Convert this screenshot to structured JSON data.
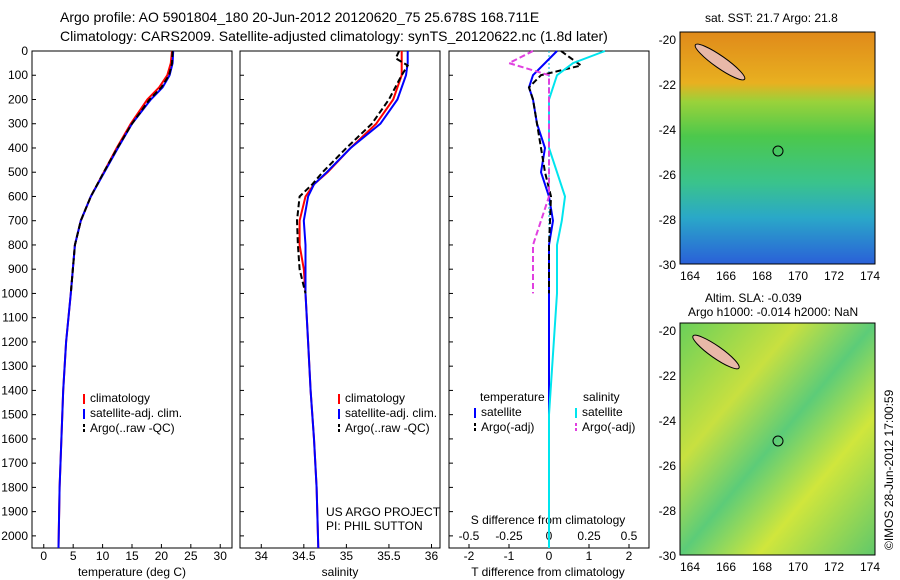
{
  "header": {
    "line1": "Argo profile: AO 5901804_180 20-Jun-2012 20120620_75 25.678S 168.711E",
    "line2": "Climatology: CARS2009. Satellite-adjusted climatology: synTS_20120622.nc (1.8d later)"
  },
  "colors": {
    "climatology": "#ff0000",
    "satellite": "#0000ff",
    "argo": "#000000",
    "sal_satellite": "#00e5ee",
    "sal_argo": "#e040e0"
  },
  "depth_ticks": [
    "0",
    "100",
    "200",
    "300",
    "400",
    "500",
    "600",
    "700",
    "800",
    "900",
    "1000",
    "1100",
    "1200",
    "1300",
    "1400",
    "1500",
    "1600",
    "1700",
    "1800",
    "1900",
    "2000"
  ],
  "panels": {
    "temperature": {
      "xlabel": "temperature (deg C)",
      "xticks": [
        "0",
        "5",
        "10",
        "15",
        "20",
        "25",
        "30"
      ],
      "legend": [
        "climatology",
        "satellite-adj. clim.",
        "Argo(..raw -QC)"
      ]
    },
    "salinity": {
      "xlabel": "salinity",
      "xticks": [
        "34",
        "34.5",
        "35",
        "35.5",
        "36"
      ],
      "legend": [
        "climatology",
        "satellite-adj. clim.",
        "Argo(..raw -QC)"
      ],
      "note1": "US ARGO PROJECT",
      "note2": "PI: PHIL SUTTON"
    },
    "difference": {
      "xlabel": "T difference from climatology",
      "xticks": [
        "-2",
        "-1",
        "0",
        "1",
        "2"
      ],
      "top_label": "S difference from climatology",
      "top_ticks": [
        "-0.5",
        "-0.25",
        "0",
        "0.25",
        "0.5"
      ],
      "legend_t_title": "temperature",
      "legend_s_title": "salinity",
      "legend_t": [
        "satellite",
        "Argo(-adj)"
      ],
      "legend_s": [
        "satellite",
        "Argo(-adj)"
      ]
    }
  },
  "maps": {
    "sst_title": "sat. SST: 21.7 Argo: 21.8",
    "sla_title1": "Altim. SLA: -0.039",
    "sla_title2": "Argo h1000: -0.014 h2000: NaN",
    "lon_ticks": [
      "164",
      "166",
      "168",
      "170",
      "172",
      "174"
    ],
    "lat_ticks": [
      "-20",
      "-22",
      "-24",
      "-26",
      "-28",
      "-30"
    ],
    "side_label": "©IMOS 28-Jun-2012 17:00:59"
  },
  "chart_data": [
    {
      "type": "line",
      "title": "temperature",
      "xlabel": "temperature (deg C)",
      "ylabel": "",
      "xlim": [
        -2,
        32
      ],
      "ylim": [
        2050,
        0
      ],
      "series": [
        {
          "name": "climatology",
          "depth": [
            0,
            50,
            100,
            150,
            200,
            300,
            400,
            500,
            600,
            700,
            800,
            1000,
            1200,
            1400,
            1600,
            1800,
            2050
          ],
          "values": [
            21.8,
            21.6,
            21.0,
            19.6,
            17.6,
            14.8,
            12.4,
            10.2,
            8.0,
            6.3,
            5.3,
            4.6,
            3.8,
            3.3,
            3.0,
            2.7,
            2.5
          ]
        },
        {
          "name": "satellite-adj. clim.",
          "depth": [
            0,
            50,
            100,
            150,
            200,
            300,
            400,
            500,
            600,
            700,
            800,
            1000,
            1200,
            1400,
            1600,
            1800,
            2050
          ],
          "values": [
            22.0,
            21.9,
            21.4,
            20.2,
            18.2,
            15.0,
            12.6,
            10.3,
            8.0,
            6.3,
            5.3,
            4.6,
            3.8,
            3.3,
            3.0,
            2.7,
            2.5
          ]
        },
        {
          "name": "Argo(..raw -QC)",
          "depth": [
            0,
            50,
            100,
            150,
            200,
            300,
            400,
            500,
            600,
            700,
            800,
            1000
          ],
          "values": [
            21.9,
            21.8,
            21.3,
            20.0,
            18.0,
            15.0,
            12.5,
            10.2,
            8.0,
            6.3,
            5.3,
            4.6
          ]
        }
      ]
    },
    {
      "type": "line",
      "title": "salinity",
      "xlabel": "salinity",
      "xlim": [
        33.75,
        36.1
      ],
      "ylim": [
        2050,
        0
      ],
      "series": [
        {
          "name": "climatology",
          "depth": [
            0,
            50,
            100,
            200,
            300,
            400,
            500,
            550,
            600,
            700,
            800,
            900,
            1000,
            1200,
            1400,
            1600,
            1800,
            2050
          ],
          "values": [
            35.65,
            35.65,
            35.65,
            35.55,
            35.35,
            35.05,
            34.78,
            34.62,
            34.52,
            34.45,
            34.45,
            34.5,
            34.52,
            34.55,
            34.58,
            34.62,
            34.65,
            34.67
          ]
        },
        {
          "name": "satellite-adj. clim.",
          "depth": [
            0,
            50,
            100,
            200,
            300,
            400,
            500,
            550,
            600,
            700,
            800,
            900,
            1000,
            1200,
            1400,
            1600,
            1800,
            2050
          ],
          "values": [
            35.72,
            35.72,
            35.7,
            35.6,
            35.4,
            35.05,
            34.77,
            34.62,
            34.55,
            34.5,
            34.52,
            34.52,
            34.52,
            34.55,
            34.58,
            34.62,
            34.65,
            34.67
          ]
        },
        {
          "name": "Argo(..raw -QC)",
          "depth": [
            0,
            30,
            60,
            100,
            200,
            300,
            400,
            500,
            550,
            600,
            700,
            800,
            900,
            1000
          ],
          "values": [
            35.62,
            35.58,
            35.72,
            35.65,
            35.5,
            35.3,
            35.0,
            34.72,
            34.6,
            34.45,
            34.42,
            34.43,
            34.45,
            34.52
          ]
        }
      ]
    },
    {
      "type": "line",
      "title": "difference",
      "xlabel": "T difference from climatology",
      "xlim": [
        -2.5,
        2.5
      ],
      "ylim": [
        2050,
        0
      ],
      "series": [
        {
          "name": "temperature satellite",
          "depth": [
            0,
            100,
            150,
            200,
            300,
            400,
            500,
            600,
            700,
            800,
            1000,
            1500,
            2050
          ],
          "values": [
            0.2,
            -0.4,
            -0.5,
            -0.4,
            -0.3,
            -0.1,
            -0.2,
            0.0,
            0.1,
            0.0,
            0.0,
            0.0,
            0.0
          ]
        },
        {
          "name": "temperature Argo(-adj)",
          "depth": [
            0,
            60,
            100,
            150,
            200,
            300,
            400,
            500,
            600,
            800,
            1000
          ],
          "values": [
            0.3,
            0.8,
            -0.2,
            -0.5,
            -0.4,
            -0.3,
            -0.2,
            -0.1,
            0.05,
            0.0,
            0.0
          ]
        },
        {
          "name": "salinity satellite",
          "depth": [
            0,
            50,
            100,
            200,
            300,
            400,
            500,
            600,
            700,
            800,
            1000,
            1500,
            2050
          ],
          "values": [
            0.35,
            0.15,
            0.05,
            0.0,
            0.0,
            0.0,
            0.05,
            0.1,
            0.08,
            0.05,
            0.05,
            0.0,
            0.0
          ]
        },
        {
          "name": "salinity Argo(-adj)",
          "depth": [
            0,
            50,
            100,
            200,
            300,
            400,
            500,
            600,
            700,
            800,
            900,
            1000
          ],
          "values": [
            -0.1,
            -0.25,
            0.0,
            0.0,
            0.0,
            0.0,
            0.0,
            0.0,
            -0.05,
            -0.1,
            -0.1,
            -0.1
          ]
        }
      ]
    }
  ]
}
